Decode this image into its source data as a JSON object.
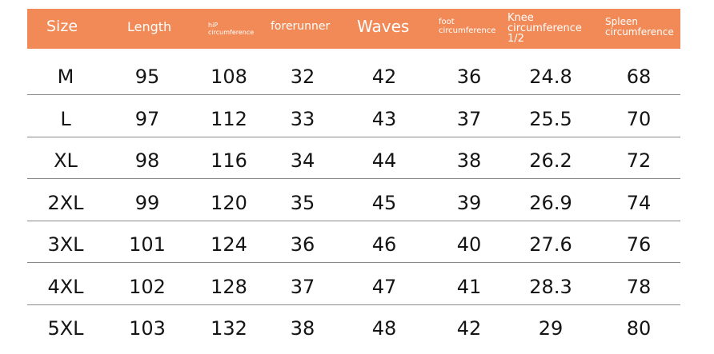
{
  "colors": {
    "header_bg": "#f28a57",
    "header_text": "#ffffff",
    "divider": "#8a8a8a",
    "body_text": "#151515"
  },
  "headers": {
    "size": "Size",
    "length": "Length",
    "hip_line1": "hiP",
    "hip_line2": "circumference",
    "forerunner": "forerunner",
    "waves": "Waves",
    "foot_line1": "foot",
    "foot_line2": "circumference",
    "knee": "Knee circumference 1/2",
    "spleen_line1": "Spleen",
    "spleen_line2": "circumference"
  },
  "rows": [
    [
      "M",
      "95",
      "108",
      "32",
      "42",
      "36",
      "24.8",
      "68"
    ],
    [
      "L",
      "97",
      "112",
      "33",
      "43",
      "37",
      "25.5",
      "70"
    ],
    [
      "XL",
      "98",
      "116",
      "34",
      "44",
      "38",
      "26.2",
      "72"
    ],
    [
      "2XL",
      "99",
      "120",
      "35",
      "45",
      "39",
      "26.9",
      "74"
    ],
    [
      "3XL",
      "101",
      "124",
      "36",
      "46",
      "40",
      "27.6",
      "76"
    ],
    [
      "4XL",
      "102",
      "128",
      "37",
      "47",
      "41",
      "28.3",
      "78"
    ],
    [
      "5XL",
      "103",
      "132",
      "38",
      "48",
      "42",
      "29",
      "80"
    ]
  ]
}
